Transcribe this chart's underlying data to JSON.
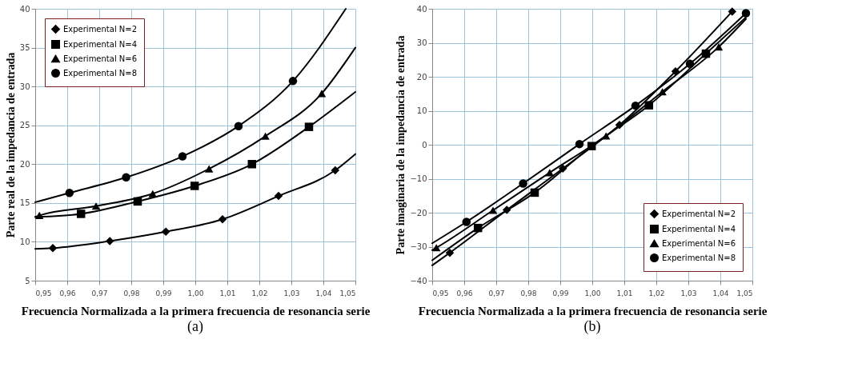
{
  "chart_data": [
    {
      "type": "scatter",
      "xlabel": "Frecuencia Normalizada a la primera frecuencia de resonancia serie",
      "ylabel": "Parte real de la impedancia de entrada",
      "annotations": [
        "(a)"
      ],
      "grid": true,
      "legend": "top left",
      "xlim": [
        0.95,
        1.05
      ],
      "xticks": [
        {
          "value": 0.95,
          "label": "0,95"
        },
        {
          "value": 0.96,
          "label": "0,96"
        },
        {
          "value": 0.97,
          "label": "0,97"
        },
        {
          "value": 0.98,
          "label": "0,98"
        },
        {
          "value": 0.99,
          "label": "0,99"
        },
        {
          "value": 1.0,
          "label": "1,00"
        },
        {
          "value": 1.01,
          "label": "1,01"
        },
        {
          "value": 1.02,
          "label": "1,02"
        },
        {
          "value": 1.03,
          "label": "1,03"
        },
        {
          "value": 1.04,
          "label": "1,04"
        },
        {
          "value": 1.05,
          "label": "1,05"
        }
      ],
      "ylim": [
        5,
        40
      ],
      "yticks": [
        5,
        10,
        15,
        20,
        25,
        30,
        35,
        40
      ],
      "series": [
        {
          "type": "line",
          "color": "#000000",
          "x": [
            0.95,
            0.9555,
            0.9733,
            0.9908,
            1.0085,
            1.026,
            1.0437,
            1.05
          ],
          "values": [
            9.1,
            9.2,
            10.1,
            11.3,
            12.9,
            15.9,
            19.2,
            21.3
          ]
        },
        {
          "type": "line",
          "color": "#000000",
          "x": [
            0.95,
            0.9643,
            0.982,
            0.9998,
            1.0177,
            1.0355,
            1.05
          ],
          "values": [
            13.2,
            13.6,
            15.2,
            17.2,
            20.0,
            24.8,
            29.3
          ]
        },
        {
          "type": "line",
          "color": "#000000",
          "x": [
            0.95,
            0.9513,
            0.969,
            0.9867,
            1.0043,
            1.0219,
            1.0395,
            1.05
          ],
          "values": [
            13.2,
            13.4,
            14.6,
            16.2,
            19.4,
            23.6,
            29.1,
            35.0
          ]
        },
        {
          "type": "line",
          "color": "#000000",
          "x": [
            0.95,
            0.9607,
            0.9784,
            0.996,
            1.0135,
            1.0305,
            1.047
          ],
          "values": [
            15.1,
            16.3,
            18.3,
            21.0,
            24.9,
            30.7,
            40.0
          ]
        },
        {
          "name": "Experimental N=2",
          "marker": "diamond",
          "color": "#000000",
          "x": [
            0.9555,
            0.9733,
            0.9908,
            1.0085,
            1.026,
            1.0437
          ],
          "values": [
            9.2,
            10.1,
            11.3,
            12.9,
            15.9,
            19.2
          ]
        },
        {
          "name": "Experimental N=4",
          "marker": "square",
          "color": "#000000",
          "x": [
            0.9643,
            0.982,
            0.9998,
            1.0177,
            1.0355
          ],
          "values": [
            13.6,
            15.2,
            17.2,
            20.0,
            24.8
          ]
        },
        {
          "name": "Experimental N=6",
          "marker": "triangle",
          "color": "#000000",
          "x": [
            0.9513,
            0.969,
            0.9867,
            1.0043,
            1.0219,
            1.0395
          ],
          "values": [
            13.4,
            14.6,
            16.2,
            19.4,
            23.6,
            29.1
          ]
        },
        {
          "name": "Experimental N=8",
          "marker": "circle",
          "color": "#000000",
          "x": [
            0.9607,
            0.9784,
            0.996,
            1.0135,
            1.0305
          ],
          "values": [
            16.3,
            18.3,
            21.0,
            24.9,
            30.7
          ]
        }
      ]
    },
    {
      "type": "scatter",
      "xlabel": "Frecuencia Normalizada a la primera frecuencia de resonancia serie",
      "ylabel": "Parte imaginaria de la impedancia de entrada",
      "annotations": [
        "(b)"
      ],
      "grid": true,
      "legend": "bottom right",
      "xlim": [
        0.95,
        1.05
      ],
      "xticks": [
        {
          "value": 0.95,
          "label": "0,95"
        },
        {
          "value": 0.96,
          "label": "0,96"
        },
        {
          "value": 0.97,
          "label": "0,97"
        },
        {
          "value": 0.98,
          "label": "0,98"
        },
        {
          "value": 0.99,
          "label": "0,99"
        },
        {
          "value": 1.0,
          "label": "1,00"
        },
        {
          "value": 1.01,
          "label": "1,01"
        },
        {
          "value": 1.02,
          "label": "1,02"
        },
        {
          "value": 1.03,
          "label": "1,03"
        },
        {
          "value": 1.04,
          "label": "1,04"
        },
        {
          "value": 1.05,
          "label": "1,05"
        }
      ],
      "ylim": [
        -40,
        40
      ],
      "yticks": [
        -40,
        -30,
        -20,
        -10,
        0,
        10,
        20,
        30,
        40
      ],
      "series": [
        {
          "type": "line",
          "color": "#000000",
          "x": [
            0.95,
            0.9555,
            0.9733,
            0.9908,
            1.0085,
            1.026,
            1.0437
          ],
          "values": [
            -35.5,
            -31.8,
            -19.2,
            -7.0,
            5.8,
            21.6,
            39.2
          ]
        },
        {
          "type": "line",
          "color": "#000000",
          "x": [
            0.95,
            0.9643,
            0.982,
            0.9998,
            1.0177,
            1.0355,
            1.048
          ],
          "values": [
            -34.0,
            -24.5,
            -14.1,
            -0.4,
            11.6,
            26.8,
            37.5
          ]
        },
        {
          "type": "line",
          "color": "#000000",
          "x": [
            0.95,
            0.9513,
            0.969,
            0.9867,
            1.0043,
            1.0219,
            1.0395,
            1.048
          ],
          "values": [
            -31.0,
            -30.3,
            -19.3,
            -8.2,
            2.6,
            15.6,
            28.8,
            37.0
          ]
        },
        {
          "type": "line",
          "color": "#000000",
          "x": [
            0.95,
            0.9607,
            0.9784,
            0.996,
            1.0135,
            1.0305,
            1.048
          ],
          "values": [
            -29.0,
            -22.7,
            -11.4,
            0.2,
            11.5,
            23.8,
            38.7
          ]
        },
        {
          "name": "Experimental N=2",
          "marker": "diamond",
          "color": "#000000",
          "x": [
            0.9555,
            0.9733,
            0.9908,
            1.0085,
            1.026,
            1.0437
          ],
          "values": [
            -31.8,
            -19.2,
            -7.0,
            5.8,
            21.6,
            39.2
          ]
        },
        {
          "name": "Experimental N=4",
          "marker": "square",
          "color": "#000000",
          "x": [
            0.9643,
            0.982,
            0.9998,
            1.0177,
            1.0355
          ],
          "values": [
            -24.5,
            -14.1,
            -0.4,
            11.6,
            26.8
          ]
        },
        {
          "name": "Experimental N=6",
          "marker": "triangle",
          "color": "#000000",
          "x": [
            0.9513,
            0.969,
            0.9867,
            1.0043,
            1.0219,
            1.0395
          ],
          "values": [
            -30.3,
            -19.3,
            -8.2,
            2.6,
            15.6,
            28.8
          ]
        },
        {
          "name": "Experimental N=8",
          "marker": "circle",
          "color": "#000000",
          "x": [
            0.9607,
            0.9784,
            0.996,
            1.0135,
            1.0305,
            1.048
          ],
          "values": [
            -22.7,
            -11.4,
            0.2,
            11.5,
            23.8,
            38.7
          ]
        }
      ]
    }
  ]
}
